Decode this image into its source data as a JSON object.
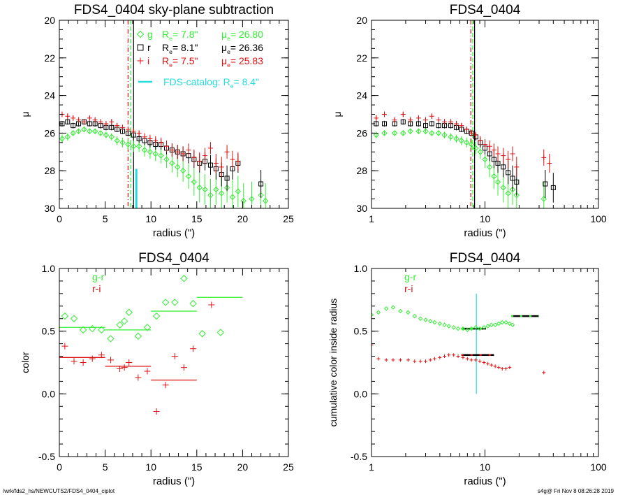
{
  "page": {
    "footer_left": "/wrk/fds2_hs/NEWCUTS2/FDS4_0404_ciplot",
    "footer_right": "s4g@  Fri Nov  8 08:26:28 2019"
  },
  "colors": {
    "g": "#33ee33",
    "r": "#000000",
    "i": "#dd1111",
    "catalog": "#22dddd",
    "frame": "#000000"
  },
  "chart_data": [
    {
      "id": "p1",
      "type": "scatter",
      "title": "FDS4_0404 sky-plane subtraction",
      "xlabel": "radius (\")",
      "ylabel": "μ",
      "xlim": [
        0,
        25
      ],
      "ylim": [
        30,
        20
      ],
      "xticks": [
        "0",
        "5",
        "10",
        "15",
        "20",
        "25"
      ],
      "yticks": [
        "20",
        "22",
        "24",
        "26",
        "28",
        "30"
      ],
      "legend": [
        {
          "band": "g",
          "re_label": "R",
          "re_sub": "e",
          "re_value": "=   7.8\"",
          "mu_label": "μ",
          "mu_sub": "e",
          "mu_value": "= 26.80",
          "marker": "diamond"
        },
        {
          "band": "r",
          "re_label": "R",
          "re_sub": "e",
          "re_value": "=   8.1\"",
          "mu_label": "μ",
          "mu_sub": "e",
          "mu_value": "= 26.36",
          "marker": "square"
        },
        {
          "band": "i",
          "re_label": "R",
          "re_sub": "e",
          "re_value": "=   7.5\"",
          "mu_label": "μ",
          "mu_sub": "e",
          "mu_value": "= 25.83",
          "marker": "plus"
        }
      ],
      "catalog_label": "FDS-catalog: R",
      "catalog_sub": "e",
      "catalog_value": "=   8.4\"",
      "re_lines": {
        "g": 7.8,
        "r": 8.1,
        "i": 7.5,
        "catalog": 8.4
      },
      "series": [
        {
          "name": "g",
          "x": [
            0.3,
            0.9,
            1.5,
            2.1,
            2.7,
            3.3,
            3.9,
            4.5,
            5.1,
            5.7,
            6.3,
            6.9,
            7.5,
            8.1,
            8.7,
            9.3,
            9.9,
            10.5,
            11.1,
            11.7,
            12.3,
            12.9,
            13.5,
            14.1,
            14.7,
            15.3,
            15.9,
            16.5,
            17.1,
            17.7,
            18.3,
            18.9,
            19.5,
            20.1,
            21.0,
            22.0,
            22.5
          ],
          "y": [
            26.3,
            26.2,
            26.0,
            25.9,
            25.8,
            25.9,
            25.9,
            26.0,
            26.1,
            26.2,
            26.4,
            26.5,
            26.6,
            26.7,
            26.7,
            26.9,
            27.0,
            27.1,
            27.2,
            27.4,
            27.6,
            27.8,
            28.0,
            28.3,
            28.6,
            28.9,
            29.0,
            29.3,
            29.0,
            29.2,
            28.9,
            29.4,
            29.1,
            29.6,
            29.5,
            29.3,
            29.6
          ]
        },
        {
          "name": "r",
          "x": [
            0.3,
            0.9,
            1.5,
            2.1,
            2.7,
            3.3,
            3.9,
            4.5,
            5.1,
            5.7,
            6.3,
            6.9,
            7.5,
            8.1,
            8.7,
            9.3,
            9.9,
            10.5,
            11.1,
            11.7,
            12.3,
            12.9,
            13.5,
            14.1,
            14.7,
            15.3,
            15.9,
            16.5,
            17.1,
            17.7,
            18.3,
            18.9,
            19.5,
            22.0
          ],
          "y": [
            25.5,
            25.4,
            25.6,
            25.5,
            25.4,
            25.5,
            25.5,
            25.6,
            25.7,
            25.7,
            25.8,
            25.9,
            26.0,
            26.1,
            26.3,
            26.4,
            26.5,
            26.6,
            26.6,
            26.8,
            26.9,
            27.0,
            27.1,
            27.2,
            27.4,
            27.6,
            27.5,
            27.7,
            27.9,
            28.2,
            28.4,
            27.9,
            27.6,
            28.7
          ]
        },
        {
          "name": "i",
          "x": [
            0.3,
            0.9,
            1.5,
            2.1,
            2.7,
            3.3,
            3.9,
            4.5,
            5.1,
            5.7,
            6.3,
            6.9,
            7.5,
            8.1,
            8.7,
            9.3,
            9.9,
            10.5,
            11.1,
            11.7,
            12.3,
            12.9,
            13.5,
            14.1,
            14.7,
            15.3,
            15.9,
            16.5,
            17.1,
            17.7,
            18.3,
            18.9,
            19.5
          ],
          "y": [
            25.0,
            25.1,
            25.2,
            25.3,
            25.4,
            25.2,
            25.3,
            25.4,
            25.5,
            25.4,
            25.6,
            25.7,
            25.8,
            25.9,
            26.0,
            26.2,
            26.3,
            26.4,
            26.5,
            26.7,
            26.9,
            27.0,
            27.1,
            26.9,
            27.3,
            27.5,
            27.2,
            26.8,
            27.6,
            27.8,
            27.0,
            27.4,
            27.5
          ]
        }
      ]
    },
    {
      "id": "p2",
      "type": "scatter",
      "title": "FDS4_0404",
      "xlabel": "radius (\")",
      "ylabel": "μ",
      "xscale": "log",
      "xlim": [
        1,
        100
      ],
      "ylim": [
        30,
        20
      ],
      "xticks": [
        "1",
        "10",
        "100"
      ],
      "yticks": [
        "20",
        "22",
        "24",
        "26",
        "28",
        "30"
      ],
      "re_lines": {
        "g": 7.8,
        "r": 8.1,
        "i": 7.5
      },
      "series": [
        {
          "name": "g",
          "x": [
            1.1,
            1.3,
            1.6,
            1.9,
            2.2,
            2.6,
            3.0,
            3.4,
            3.9,
            4.4,
            5.0,
            5.6,
            6.2,
            6.9,
            7.6,
            8.3,
            9.1,
            10.0,
            11.0,
            12.0,
            13.0,
            14.5,
            16.0,
            17.5,
            19.0,
            33.0
          ],
          "y": [
            26.1,
            26.0,
            26.0,
            26.0,
            25.9,
            25.9,
            25.9,
            26.0,
            26.0,
            26.1,
            26.2,
            26.3,
            26.4,
            26.5,
            26.6,
            26.8,
            27.0,
            27.4,
            27.8,
            28.3,
            28.6,
            28.9,
            29.2,
            29.0,
            29.3,
            29.5
          ]
        },
        {
          "name": "r",
          "x": [
            1.1,
            1.3,
            1.6,
            1.9,
            2.2,
            2.6,
            3.0,
            3.4,
            3.9,
            4.4,
            5.0,
            5.6,
            6.2,
            6.9,
            7.6,
            8.3,
            9.1,
            10.0,
            11.0,
            12.0,
            13.0,
            14.5,
            16.0,
            17.5,
            19.0,
            34.0,
            40.0
          ],
          "y": [
            25.5,
            25.5,
            25.5,
            25.4,
            25.5,
            25.5,
            25.6,
            25.5,
            25.6,
            25.6,
            25.6,
            25.7,
            25.8,
            25.9,
            26.0,
            26.2,
            26.5,
            26.8,
            27.1,
            27.4,
            27.6,
            27.8,
            28.1,
            28.4,
            28.6,
            28.7,
            28.9
          ]
        },
        {
          "name": "i",
          "x": [
            1.1,
            1.3,
            1.6,
            1.9,
            2.2,
            2.6,
            3.0,
            3.4,
            3.9,
            4.4,
            5.0,
            5.6,
            6.2,
            6.9,
            7.6,
            8.3,
            9.1,
            10.0,
            11.0,
            12.0,
            13.0,
            14.5,
            16.0,
            17.5,
            19.0,
            33.0,
            37.0
          ],
          "y": [
            25.2,
            25.0,
            25.3,
            25.0,
            25.3,
            25.2,
            25.3,
            25.1,
            25.3,
            25.4,
            25.4,
            25.5,
            25.6,
            25.8,
            26.0,
            26.1,
            26.4,
            26.6,
            26.7,
            26.9,
            27.1,
            27.2,
            27.4,
            27.1,
            27.8,
            27.3,
            27.6
          ]
        }
      ]
    },
    {
      "id": "p3",
      "type": "scatter",
      "title": "FDS4_0404",
      "xlabel": "radius (\")",
      "ylabel": "color",
      "xlim": [
        0,
        25
      ],
      "ylim": [
        -0.5,
        1.0
      ],
      "xticks": [
        "0",
        "5",
        "10",
        "15",
        "20",
        "25"
      ],
      "yticks": [
        "-0.5",
        "0.0",
        "0.5",
        "1.0"
      ],
      "legend": [
        "g-r",
        "r-i"
      ],
      "series": [
        {
          "name": "g-r",
          "marker": "diamond",
          "x": [
            0.6,
            1.6,
            2.6,
            3.6,
            4.6,
            5.6,
            6.6,
            7.1,
            7.6,
            8.6,
            9.6,
            10.6,
            11.6,
            12.6,
            13.6,
            14.6,
            15.6,
            17.6
          ],
          "y": [
            0.62,
            0.6,
            0.51,
            0.52,
            0.51,
            0.44,
            0.55,
            0.58,
            0.65,
            0.46,
            0.53,
            0.62,
            0.73,
            0.73,
            0.92,
            0.72,
            0.48,
            0.49
          ]
        },
        {
          "name": "r-i",
          "marker": "plus",
          "x": [
            0.6,
            1.6,
            2.6,
            3.6,
            4.6,
            5.6,
            6.6,
            7.1,
            7.6,
            8.6,
            9.6,
            10.6,
            11.6,
            12.6,
            13.6,
            14.6,
            16.6
          ],
          "y": [
            0.38,
            0.26,
            0.25,
            0.28,
            0.31,
            0.27,
            0.2,
            0.21,
            0.25,
            0.13,
            0.18,
            -0.14,
            0.07,
            0.3,
            0.21,
            0.36,
            0.71
          ]
        }
      ],
      "bins": [
        {
          "name": "g-r",
          "segments": [
            [
              0,
              5,
              0.53
            ],
            [
              5,
              10,
              0.51
            ],
            [
              10,
              15,
              0.66
            ],
            [
              15,
              20,
              0.77
            ]
          ]
        },
        {
          "name": "r-i",
          "segments": [
            [
              0,
              5,
              0.29
            ],
            [
              5,
              10,
              0.22
            ],
            [
              10,
              15,
              0.11
            ]
          ]
        }
      ]
    },
    {
      "id": "p4",
      "type": "scatter",
      "title": "FDS4_0404",
      "xlabel": "radius (\")",
      "ylabel": "cumulative color inside radius",
      "xscale": "log",
      "xlim": [
        1,
        100
      ],
      "ylim": [
        -0.5,
        1.0
      ],
      "xticks": [
        "1",
        "10",
        "100"
      ],
      "yticks": [
        "-0.5",
        "0.0",
        "0.5",
        "1.0"
      ],
      "legend": [
        "g-r",
        "r-i"
      ],
      "catalog_x": 8.4,
      "catalog_yrange": [
        0.0,
        0.8
      ],
      "series": [
        {
          "name": "g-r",
          "marker": "diamond",
          "x": [
            1.0,
            1.15,
            1.35,
            1.55,
            1.8,
            2.1,
            2.4,
            2.7,
            3.0,
            3.3,
            3.6,
            4.0,
            4.4,
            4.8,
            5.3,
            5.8,
            6.4,
            7.0,
            7.6,
            8.3,
            9.0,
            9.8,
            10.6,
            11.4,
            12.3,
            13.2,
            14.2,
            15.3,
            16.5,
            17.5
          ],
          "y": [
            0.63,
            0.65,
            0.68,
            0.69,
            0.66,
            0.65,
            0.62,
            0.6,
            0.59,
            0.58,
            0.57,
            0.56,
            0.55,
            0.54,
            0.53,
            0.52,
            0.52,
            0.51,
            0.52,
            0.53,
            0.52,
            0.53,
            0.54,
            0.55,
            0.55,
            0.56,
            0.57,
            0.57,
            0.56,
            0.55
          ]
        },
        {
          "name": "r-i",
          "marker": "plus",
          "x": [
            1.0,
            1.15,
            1.35,
            1.55,
            1.8,
            2.1,
            2.4,
            2.7,
            3.0,
            3.3,
            3.6,
            4.0,
            4.4,
            4.8,
            5.3,
            5.8,
            6.4,
            7.0,
            7.6,
            8.3,
            9.0,
            9.8,
            10.6,
            11.4,
            12.3,
            13.2,
            14.2,
            15.3,
            16.5,
            33.0
          ],
          "y": [
            0.39,
            0.28,
            0.27,
            0.27,
            0.27,
            0.27,
            0.26,
            0.26,
            0.26,
            0.27,
            0.28,
            0.29,
            0.3,
            0.31,
            0.31,
            0.3,
            0.29,
            0.28,
            0.27,
            0.27,
            0.26,
            0.25,
            0.24,
            0.23,
            0.22,
            0.21,
            0.2,
            0.2,
            0.21,
            0.17
          ]
        }
      ],
      "bins": [
        {
          "name": "g-r",
          "segments": [
            [
              6.2,
              10.2,
              0.52
            ],
            [
              17.0,
              30.0,
              0.62
            ]
          ]
        },
        {
          "name": "r-i",
          "segments": [
            [
              6.2,
              12.0,
              0.31
            ]
          ]
        }
      ]
    }
  ]
}
